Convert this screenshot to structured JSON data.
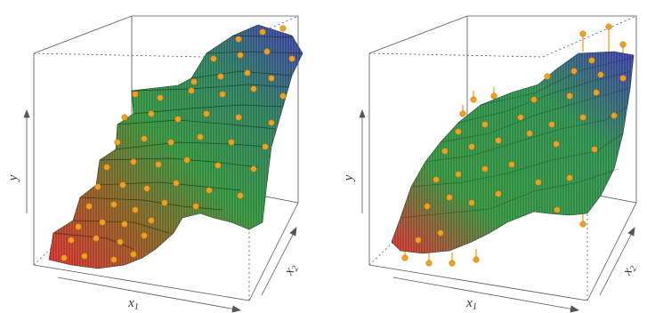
{
  "panels": [
    {
      "id": "left",
      "x_label": "x",
      "x_sub": "1",
      "y_label": "y",
      "z_label": "x",
      "z_sub": "2",
      "surface_type": "step"
    },
    {
      "id": "right",
      "x_label": "x",
      "x_sub": "1",
      "y_label": "y",
      "z_label": "x",
      "z_sub": "2",
      "surface_type": "smooth-with-residuals"
    }
  ],
  "colors": {
    "low": "#d42a2a",
    "mid": "#2f8f3a",
    "high": "#3a36a8",
    "point": "#f0a020",
    "frame": "#555555"
  }
}
